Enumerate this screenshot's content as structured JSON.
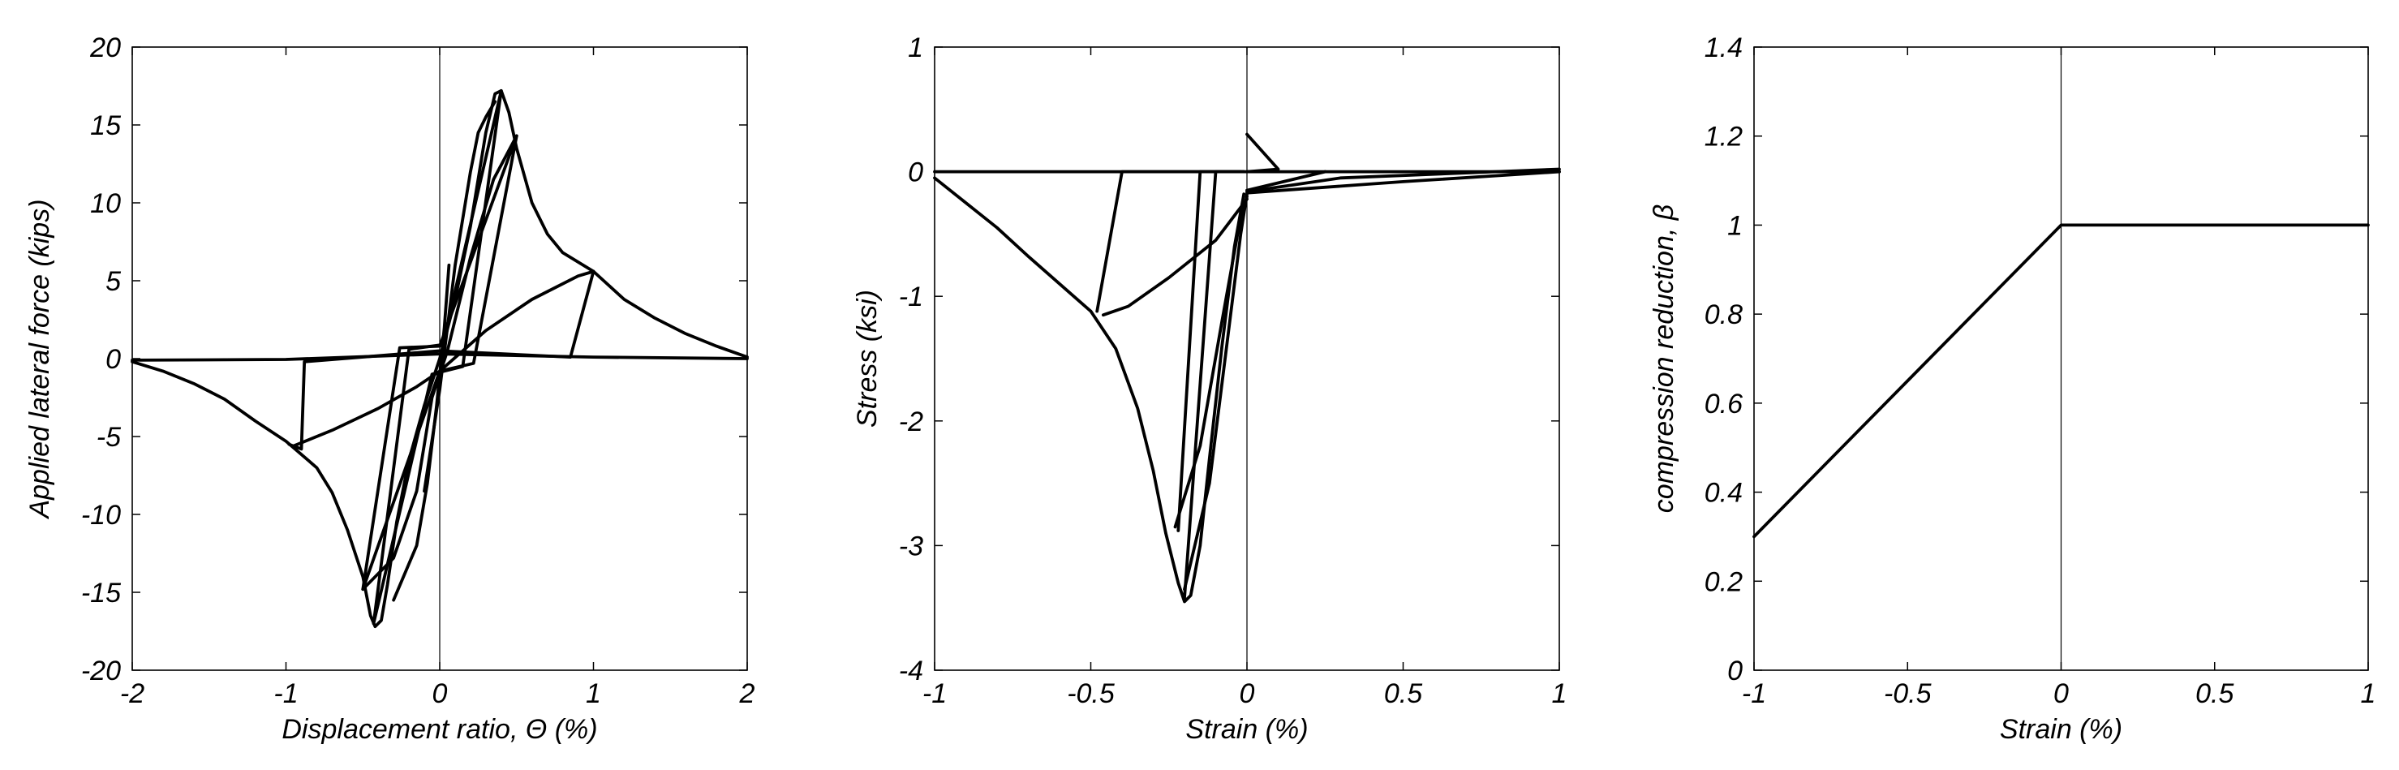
{
  "chart_data": [
    {
      "type": "line",
      "title": "",
      "xlabel": "Displacement ratio, Θ (%)",
      "ylabel": "Applied lateral force (kips)",
      "xlim": [
        -2,
        2
      ],
      "ylim": [
        -20,
        20
      ],
      "xticks": [
        -2,
        -1,
        0,
        1,
        2
      ],
      "yticks": [
        -20,
        -15,
        -10,
        -5,
        0,
        5,
        10,
        15,
        20
      ],
      "xtick_labels": [
        "-2",
        "-1",
        "0",
        "1",
        "2"
      ],
      "ytick_labels": [
        "-20",
        "-15",
        "-10",
        "-5",
        "0",
        "5",
        "10",
        "15",
        "20"
      ],
      "grid": false,
      "zero_line_x": 0,
      "series": [
        {
          "values": [
            [
              -2,
              -0.2
            ],
            [
              -1.8,
              -0.8
            ],
            [
              -1.6,
              -1.6
            ],
            [
              -1.4,
              -2.6
            ],
            [
              -1.2,
              -4.0
            ],
            [
              -1.0,
              -5.3
            ],
            [
              -0.8,
              -7.0
            ],
            [
              -0.7,
              -8.6
            ],
            [
              -0.6,
              -11.0
            ],
            [
              -0.5,
              -14.0
            ],
            [
              -0.45,
              -16.5
            ],
            [
              -0.42,
              -17.2
            ],
            [
              -0.38,
              -16.8
            ],
            [
              -0.34,
              -14.5
            ],
            [
              -0.28,
              -10.5
            ],
            [
              -0.2,
              -6.5
            ],
            [
              -0.1,
              -3.0
            ],
            [
              0,
              0
            ],
            [
              0.1,
              3.8
            ],
            [
              0.2,
              8.5
            ],
            [
              0.3,
              14.5
            ],
            [
              0.36,
              17.0
            ],
            [
              0.4,
              17.2
            ],
            [
              0.45,
              15.8
            ],
            [
              0.5,
              13.5
            ],
            [
              0.6,
              10.0
            ],
            [
              0.7,
              8.0
            ],
            [
              0.8,
              6.8
            ],
            [
              1.0,
              5.6
            ],
            [
              1.2,
              3.8
            ],
            [
              1.4,
              2.6
            ],
            [
              1.6,
              1.6
            ],
            [
              1.8,
              0.8
            ],
            [
              2.0,
              0.1
            ]
          ]
        },
        {
          "values": [
            [
              -2,
              -0.1
            ],
            [
              -1.0,
              -0.05
            ],
            [
              0,
              0.3
            ],
            [
              1.0,
              0.1
            ],
            [
              2,
              0
            ]
          ]
        },
        {
          "values": [
            [
              -0.95,
              -5.6
            ],
            [
              -0.7,
              -4.6
            ],
            [
              -0.4,
              -3.2
            ],
            [
              -0.15,
              -1.8
            ],
            [
              0,
              -0.8
            ],
            [
              0.3,
              1.8
            ],
            [
              0.6,
              3.8
            ],
            [
              0.9,
              5.3
            ],
            [
              1.0,
              5.6
            ]
          ]
        },
        {
          "values": [
            [
              -0.98,
              -5.5
            ],
            [
              -0.9,
              -5.8
            ],
            [
              -0.88,
              -0.2
            ],
            [
              0,
              0.5
            ],
            [
              0.85,
              0.1
            ],
            [
              1.0,
              5.6
            ]
          ]
        },
        {
          "values": [
            [
              -0.5,
              -14.8
            ],
            [
              -0.3,
              -12.8
            ],
            [
              -0.15,
              -8.5
            ],
            [
              -0.05,
              -2.5
            ],
            [
              0.05,
              0.5
            ],
            [
              0.2,
              6.5
            ],
            [
              0.35,
              11.5
            ],
            [
              0.5,
              14.3
            ]
          ]
        },
        {
          "values": [
            [
              -0.5,
              -14.8
            ],
            [
              -0.26,
              0.7
            ],
            [
              0,
              0.8
            ],
            [
              0.5,
              14.3
            ],
            [
              0.22,
              -0.3
            ],
            [
              0,
              -0.8
            ],
            [
              -0.5,
              -14.8
            ]
          ]
        },
        {
          "values": [
            [
              -0.43,
              -17.0
            ],
            [
              -0.2,
              0.6
            ],
            [
              0.02,
              0.9
            ],
            [
              0.4,
              17.2
            ],
            [
              0.15,
              -0.5
            ],
            [
              -0.05,
              -1.0
            ],
            [
              -0.43,
              -17.0
            ]
          ]
        },
        {
          "values": [
            [
              -0.1,
              -8.5
            ],
            [
              0.0,
              -2.0
            ],
            [
              0.1,
              6.0
            ],
            [
              0.2,
              12.0
            ],
            [
              0.25,
              14.5
            ],
            [
              0.3,
              15.5
            ],
            [
              0.36,
              16.5
            ]
          ]
        },
        {
          "values": [
            [
              -0.3,
              -15.5
            ],
            [
              -0.15,
              -12.0
            ],
            [
              -0.08,
              -8.0
            ],
            [
              -0.02,
              -3.0
            ],
            [
              0.03,
              2.0
            ],
            [
              0.06,
              6.0
            ]
          ]
        }
      ]
    },
    {
      "type": "line",
      "title": "",
      "xlabel": "Strain (%)",
      "ylabel": "Stress (ksi)",
      "xlim": [
        -1,
        1
      ],
      "ylim": [
        -4,
        1
      ],
      "xticks": [
        -1,
        -0.5,
        0,
        0.5,
        1
      ],
      "yticks": [
        -4,
        -3,
        -2,
        -1,
        0,
        1
      ],
      "xtick_labels": [
        "-1",
        "-0.5",
        "0",
        "0.5",
        "1"
      ],
      "ytick_labels": [
        "-4",
        "-3",
        "-2",
        "-1",
        "0",
        "1"
      ],
      "grid": false,
      "zero_line_x": 0,
      "series": [
        {
          "values": [
            [
              -1,
              -0.05
            ],
            [
              -0.9,
              -0.25
            ],
            [
              -0.8,
              -0.45
            ],
            [
              -0.7,
              -0.68
            ],
            [
              -0.6,
              -0.9
            ],
            [
              -0.5,
              -1.12
            ],
            [
              -0.42,
              -1.42
            ],
            [
              -0.35,
              -1.9
            ],
            [
              -0.3,
              -2.4
            ],
            [
              -0.26,
              -2.9
            ],
            [
              -0.22,
              -3.3
            ],
            [
              -0.2,
              -3.45
            ],
            [
              -0.18,
              -3.4
            ],
            [
              -0.15,
              -3.0
            ],
            [
              -0.12,
              -2.3
            ],
            [
              -0.08,
              -1.4
            ],
            [
              -0.04,
              -0.6
            ],
            [
              -0.01,
              -0.18
            ]
          ]
        },
        {
          "values": [
            [
              -1,
              0
            ],
            [
              1,
              0
            ]
          ]
        },
        {
          "values": [
            [
              -0.48,
              -1.12
            ],
            [
              -0.4,
              0
            ],
            [
              -0.01,
              0
            ]
          ]
        },
        {
          "values": [
            [
              -0.46,
              -1.15
            ],
            [
              -0.38,
              -1.08
            ],
            [
              -0.25,
              -0.85
            ],
            [
              -0.1,
              -0.55
            ],
            [
              0,
              -0.22
            ]
          ]
        },
        {
          "values": [
            [
              -0.22,
              -2.88
            ],
            [
              -0.15,
              0
            ],
            [
              -0.02,
              0
            ]
          ]
        },
        {
          "values": [
            [
              -0.23,
              -2.85
            ],
            [
              -0.15,
              -2.2
            ],
            [
              -0.08,
              -1.2
            ],
            [
              -0.03,
              -0.5
            ],
            [
              0,
              -0.2
            ]
          ]
        },
        {
          "values": [
            [
              -0.2,
              -3.42
            ],
            [
              -0.1,
              0
            ],
            [
              -0.01,
              0
            ]
          ]
        },
        {
          "values": [
            [
              -0.2,
              -3.35
            ],
            [
              -0.12,
              -2.5
            ],
            [
              -0.06,
              -1.3
            ],
            [
              -0.02,
              -0.5
            ],
            [
              0,
              -0.18
            ]
          ]
        },
        {
          "values": [
            [
              0,
              0.3
            ],
            [
              0.1,
              0.02
            ],
            [
              0,
              0
            ]
          ]
        },
        {
          "values": [
            [
              0,
              -0.15
            ],
            [
              0.25,
              0
            ]
          ]
        },
        {
          "values": [
            [
              0,
              -0.17
            ],
            [
              0.5,
              -0.08
            ],
            [
              1,
              0
            ]
          ]
        },
        {
          "values": [
            [
              0,
              -0.16
            ],
            [
              0.3,
              -0.05
            ],
            [
              1,
              0.02
            ]
          ]
        }
      ]
    },
    {
      "type": "line",
      "title": "",
      "xlabel": "Strain (%)",
      "ylabel": "compression reduction, β",
      "xlim": [
        -1,
        1
      ],
      "ylim": [
        0,
        1.4
      ],
      "xticks": [
        -1,
        -0.5,
        0,
        0.5,
        1
      ],
      "yticks": [
        0,
        0.2,
        0.4,
        0.6,
        0.8,
        1,
        1.2,
        1.4
      ],
      "xtick_labels": [
        "-1",
        "-0.5",
        "0",
        "0.5",
        "1"
      ],
      "ytick_labels": [
        "0",
        "0.2",
        "0.4",
        "0.6",
        "0.8",
        "1",
        "1.2",
        "1.4"
      ],
      "grid": false,
      "zero_line_x": 0,
      "series": [
        {
          "values": [
            [
              -1,
              0.3
            ],
            [
              0,
              1
            ],
            [
              1,
              1
            ]
          ]
        }
      ]
    }
  ]
}
